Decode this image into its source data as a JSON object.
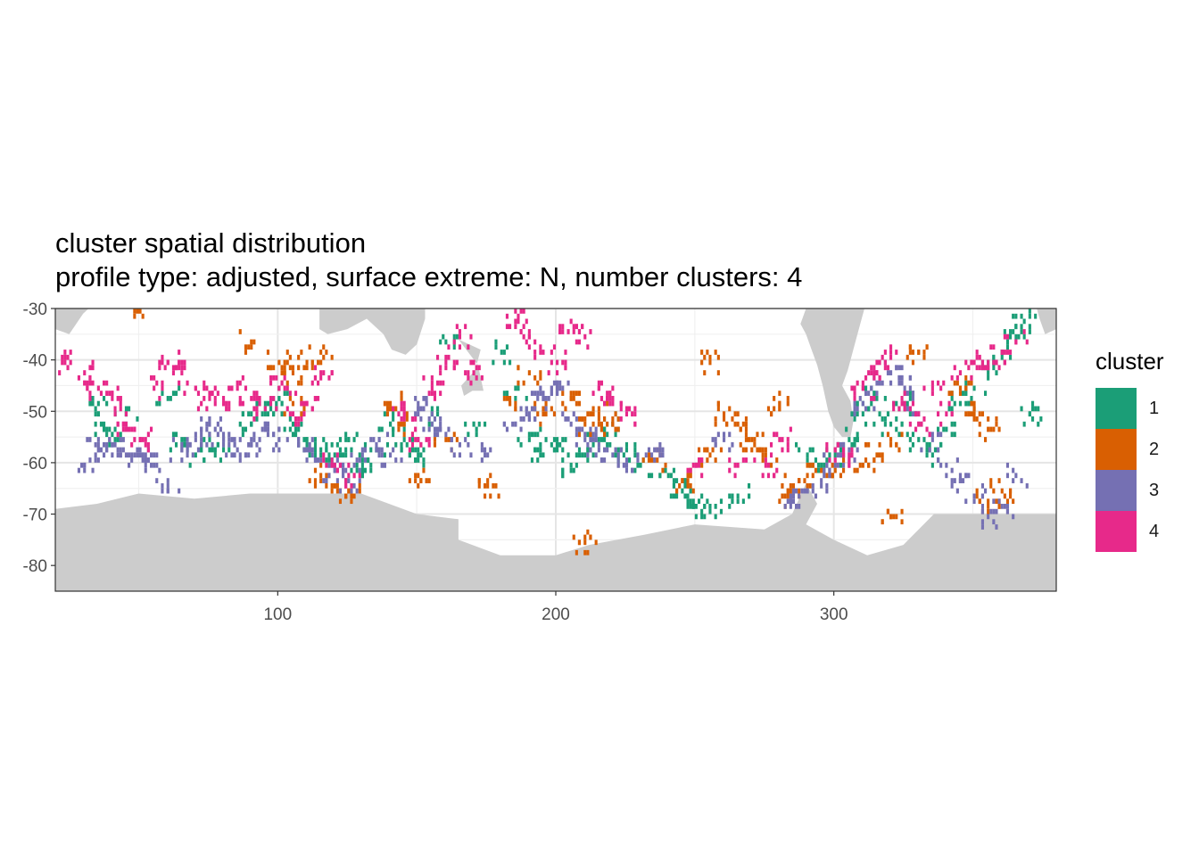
{
  "title": "cluster spatial distribution",
  "subtitle": "profile type: adjusted, surface extreme: N, number clusters: 4",
  "chart_data": {
    "type": "heatmap",
    "xlim": [
      20,
      380
    ],
    "ylim": [
      -85,
      -30
    ],
    "x_ticks": [
      100,
      200,
      300
    ],
    "x_tick_labels": [
      "100",
      "200",
      "300"
    ],
    "y_ticks": [
      -30,
      -40,
      -50,
      -60,
      -70,
      -80
    ],
    "y_tick_labels": [
      "-30",
      "-40",
      "-50",
      "-60",
      "-70",
      "-80"
    ],
    "grid": true,
    "land_color": "#cccccc",
    "legend": {
      "title": "cluster",
      "placement": "right",
      "items": [
        {
          "label": "1",
          "color": "#1b9e77"
        },
        {
          "label": "2",
          "color": "#d95f02"
        },
        {
          "label": "3",
          "color": "#7570b3"
        },
        {
          "label": "4",
          "color": "#e7298a"
        }
      ]
    },
    "land_polygons": [
      [
        [
          20,
          -85
        ],
        [
          380,
          -85
        ],
        [
          380,
          -70
        ],
        [
          336,
          -70
        ],
        [
          325,
          -76
        ],
        [
          312,
          -78
        ],
        [
          300,
          -75
        ],
        [
          290,
          -72
        ],
        [
          294,
          -68
        ],
        [
          290,
          -64
        ],
        [
          285,
          -70
        ],
        [
          275,
          -73
        ],
        [
          250,
          -72
        ],
        [
          232,
          -74
        ],
        [
          212,
          -76
        ],
        [
          200,
          -78
        ],
        [
          180,
          -78
        ],
        [
          165,
          -75
        ],
        [
          165,
          -71
        ],
        [
          150,
          -70
        ],
        [
          130,
          -66
        ],
        [
          110,
          -66
        ],
        [
          90,
          -66
        ],
        [
          70,
          -67
        ],
        [
          50,
          -66
        ],
        [
          35,
          -68
        ],
        [
          20,
          -69
        ]
      ],
      [
        [
          288,
          -33
        ],
        [
          290,
          -35
        ],
        [
          292,
          -38
        ],
        [
          294,
          -41
        ],
        [
          296,
          -45
        ],
        [
          298,
          -50
        ],
        [
          300,
          -53
        ],
        [
          303,
          -55
        ],
        [
          306,
          -55
        ],
        [
          307,
          -52
        ],
        [
          306,
          -48
        ],
        [
          303,
          -45
        ],
        [
          305,
          -42
        ],
        [
          307,
          -38
        ],
        [
          309,
          -34
        ],
        [
          311,
          -30
        ],
        [
          290,
          -30
        ]
      ],
      [
        [
          115,
          -30
        ],
        [
          115,
          -34
        ],
        [
          118,
          -35
        ],
        [
          125,
          -34
        ],
        [
          132,
          -32
        ],
        [
          138,
          -35
        ],
        [
          141,
          -38
        ],
        [
          146,
          -39
        ],
        [
          150,
          -37
        ],
        [
          153,
          -32
        ],
        [
          153,
          -30
        ]
      ],
      [
        [
          165,
          -36
        ],
        [
          172,
          -41
        ],
        [
          174,
          -46
        ],
        [
          170,
          -46
        ],
        [
          167,
          -47
        ],
        [
          166,
          -45
        ],
        [
          171,
          -42
        ],
        [
          173,
          -38
        ]
      ],
      [
        [
          20,
          -30
        ],
        [
          20,
          -34
        ],
        [
          25,
          -35
        ],
        [
          30,
          -31
        ],
        [
          32,
          -30
        ]
      ],
      [
        [
          373,
          -30
        ],
        [
          374,
          -32
        ],
        [
          376,
          -35
        ],
        [
          380,
          -34
        ],
        [
          380,
          -30
        ]
      ]
    ],
    "series": [
      {
        "name": "1",
        "points": [
          [
            35,
            -48
          ],
          [
            37,
            -52
          ],
          [
            40,
            -54
          ],
          [
            45,
            -50
          ],
          [
            60,
            -47
          ],
          [
            65,
            -56
          ],
          [
            70,
            -58
          ],
          [
            75,
            -55
          ],
          [
            80,
            -57
          ],
          [
            90,
            -52
          ],
          [
            95,
            -50
          ],
          [
            100,
            -47
          ],
          [
            105,
            -52
          ],
          [
            110,
            -55
          ],
          [
            115,
            -57
          ],
          [
            120,
            -58
          ],
          [
            125,
            -55
          ],
          [
            130,
            -60
          ],
          [
            135,
            -57
          ],
          [
            140,
            -52
          ],
          [
            145,
            -55
          ],
          [
            150,
            -58
          ],
          [
            155,
            -50
          ],
          [
            160,
            -36
          ],
          [
            170,
            -52
          ],
          [
            180,
            -38
          ],
          [
            185,
            -45
          ],
          [
            190,
            -55
          ],
          [
            195,
            -58
          ],
          [
            200,
            -56
          ],
          [
            205,
            -60
          ],
          [
            210,
            -58
          ],
          [
            215,
            -55
          ],
          [
            220,
            -52
          ],
          [
            225,
            -57
          ],
          [
            230,
            -60
          ],
          [
            240,
            -62
          ],
          [
            245,
            -65
          ],
          [
            250,
            -68
          ],
          [
            255,
            -68
          ],
          [
            265,
            -66
          ],
          [
            290,
            -58
          ],
          [
            295,
            -60
          ],
          [
            300,
            -58
          ],
          [
            305,
            -55
          ],
          [
            310,
            -50
          ],
          [
            315,
            -47
          ],
          [
            320,
            -52
          ],
          [
            325,
            -48
          ],
          [
            330,
            -55
          ],
          [
            335,
            -58
          ],
          [
            340,
            -53
          ],
          [
            345,
            -48
          ],
          [
            350,
            -45
          ],
          [
            355,
            -42
          ],
          [
            360,
            -38
          ],
          [
            365,
            -35
          ],
          [
            368,
            -32
          ],
          [
            370,
            -50
          ]
        ]
      },
      {
        "name": "2",
        "points": [
          [
            50,
            -30
          ],
          [
            90,
            -36
          ],
          [
            100,
            -40
          ],
          [
            105,
            -42
          ],
          [
            110,
            -40
          ],
          [
            115,
            -38
          ],
          [
            105,
            -48
          ],
          [
            115,
            -62
          ],
          [
            120,
            -64
          ],
          [
            125,
            -65
          ],
          [
            140,
            -48
          ],
          [
            145,
            -52
          ],
          [
            150,
            -62
          ],
          [
            160,
            -55
          ],
          [
            175,
            -64
          ],
          [
            185,
            -48
          ],
          [
            190,
            -42
          ],
          [
            195,
            -50
          ],
          [
            205,
            -47
          ],
          [
            210,
            -52
          ],
          [
            215,
            -50
          ],
          [
            220,
            -52
          ],
          [
            235,
            -59
          ],
          [
            245,
            -63
          ],
          [
            255,
            -40
          ],
          [
            255,
            -58
          ],
          [
            260,
            -50
          ],
          [
            265,
            -52
          ],
          [
            270,
            -55
          ],
          [
            275,
            -58
          ],
          [
            280,
            -48
          ],
          [
            282,
            -66
          ],
          [
            285,
            -64
          ],
          [
            290,
            -62
          ],
          [
            295,
            -61
          ],
          [
            300,
            -60
          ],
          [
            310,
            -60
          ],
          [
            315,
            -58
          ],
          [
            320,
            -55
          ],
          [
            330,
            -38
          ],
          [
            345,
            -45
          ],
          [
            350,
            -50
          ],
          [
            355,
            -53
          ],
          [
            355,
            -67
          ],
          [
            360,
            -65
          ],
          [
            320,
            -70
          ],
          [
            210,
            -75
          ]
        ]
      },
      {
        "name": "3",
        "points": [
          [
            30,
            -60
          ],
          [
            35,
            -57
          ],
          [
            40,
            -56
          ],
          [
            45,
            -58
          ],
          [
            50,
            -58
          ],
          [
            55,
            -60
          ],
          [
            60,
            -65
          ],
          [
            65,
            -57
          ],
          [
            70,
            -55
          ],
          [
            75,
            -52
          ],
          [
            80,
            -55
          ],
          [
            85,
            -57
          ],
          [
            90,
            -56
          ],
          [
            95,
            -53
          ],
          [
            100,
            -55
          ],
          [
            110,
            -57
          ],
          [
            115,
            -59
          ],
          [
            120,
            -61
          ],
          [
            125,
            -63
          ],
          [
            130,
            -58
          ],
          [
            135,
            -56
          ],
          [
            140,
            -58
          ],
          [
            150,
            -48
          ],
          [
            155,
            -52
          ],
          [
            160,
            -54
          ],
          [
            165,
            -56
          ],
          [
            175,
            -58
          ],
          [
            185,
            -52
          ],
          [
            190,
            -50
          ],
          [
            195,
            -47
          ],
          [
            200,
            -45
          ],
          [
            205,
            -52
          ],
          [
            210,
            -55
          ],
          [
            215,
            -57
          ],
          [
            220,
            -58
          ],
          [
            225,
            -60
          ],
          [
            235,
            -57
          ],
          [
            260,
            -55
          ],
          [
            285,
            -67
          ],
          [
            290,
            -65
          ],
          [
            295,
            -63
          ],
          [
            300,
            -60
          ],
          [
            305,
            -58
          ],
          [
            310,
            -48
          ],
          [
            315,
            -44
          ],
          [
            320,
            -42
          ],
          [
            325,
            -45
          ],
          [
            330,
            -50
          ],
          [
            335,
            -55
          ],
          [
            340,
            -60
          ],
          [
            345,
            -63
          ],
          [
            350,
            -66
          ],
          [
            355,
            -70
          ],
          [
            360,
            -68
          ],
          [
            365,
            -62
          ]
        ]
      },
      {
        "name": "4",
        "points": [
          [
            25,
            -40
          ],
          [
            30,
            -42
          ],
          [
            35,
            -45
          ],
          [
            40,
            -47
          ],
          [
            45,
            -52
          ],
          [
            50,
            -55
          ],
          [
            55,
            -45
          ],
          [
            60,
            -40
          ],
          [
            65,
            -42
          ],
          [
            70,
            -45
          ],
          [
            75,
            -47
          ],
          [
            80,
            -48
          ],
          [
            85,
            -44
          ],
          [
            90,
            -47
          ],
          [
            95,
            -49
          ],
          [
            100,
            -45
          ],
          [
            105,
            -50
          ],
          [
            110,
            -48
          ],
          [
            115,
            -42
          ],
          [
            120,
            -60
          ],
          [
            125,
            -62
          ],
          [
            145,
            -50
          ],
          [
            150,
            -55
          ],
          [
            155,
            -45
          ],
          [
            160,
            -40
          ],
          [
            165,
            -35
          ],
          [
            170,
            -42
          ],
          [
            185,
            -32
          ],
          [
            190,
            -35
          ],
          [
            195,
            -38
          ],
          [
            200,
            -40
          ],
          [
            205,
            -32
          ],
          [
            210,
            -35
          ],
          [
            215,
            -45
          ],
          [
            220,
            -47
          ],
          [
            225,
            -50
          ],
          [
            250,
            -60
          ],
          [
            265,
            -60
          ],
          [
            275,
            -60
          ],
          [
            280,
            -55
          ],
          [
            300,
            -57
          ],
          [
            305,
            -59
          ],
          [
            310,
            -45
          ],
          [
            315,
            -42
          ],
          [
            320,
            -38
          ],
          [
            325,
            -48
          ],
          [
            330,
            -52
          ],
          [
            335,
            -45
          ],
          [
            340,
            -50
          ],
          [
            345,
            -42
          ],
          [
            350,
            -40
          ],
          [
            355,
            -40
          ],
          [
            360,
            -38
          ],
          [
            365,
            -36
          ]
        ]
      }
    ]
  }
}
